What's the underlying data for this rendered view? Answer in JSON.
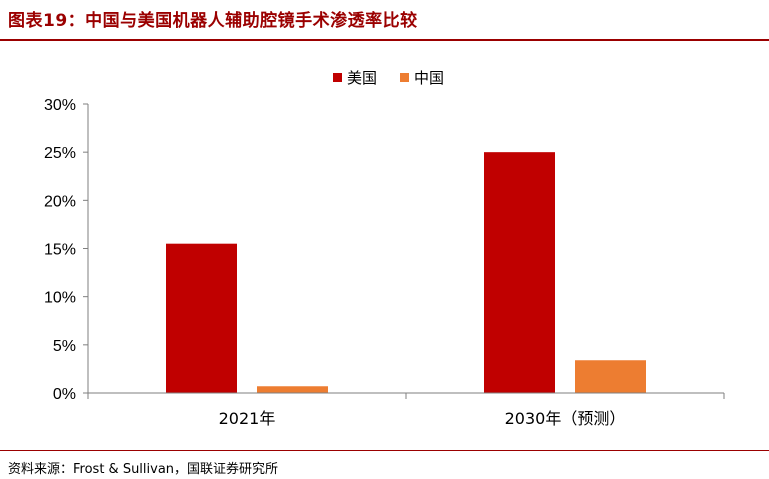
{
  "figure": {
    "title": "图表19：中国与美国机器人辅助腔镜手术渗透率比较",
    "source": "资料来源：Frost & Sullivan，国联证券研究所"
  },
  "colors": {
    "accent": "#9b0000",
    "usa": "#c00000",
    "china": "#ed7d31"
  },
  "chart_data": {
    "type": "bar",
    "categories": [
      "2021年",
      "2030年（预测）"
    ],
    "series": [
      {
        "name": "美国",
        "values": [
          15.5,
          25.0
        ],
        "color": "#c00000"
      },
      {
        "name": "中国",
        "values": [
          0.7,
          3.4
        ],
        "color": "#ed7d31"
      }
    ],
    "ylim": [
      0,
      30
    ],
    "yticks": [
      0,
      5,
      10,
      15,
      20,
      25,
      30
    ],
    "ytick_labels": [
      "0%",
      "5%",
      "10%",
      "15%",
      "20%",
      "25%",
      "30%"
    ],
    "legend_position": "top-center",
    "grid": false
  }
}
